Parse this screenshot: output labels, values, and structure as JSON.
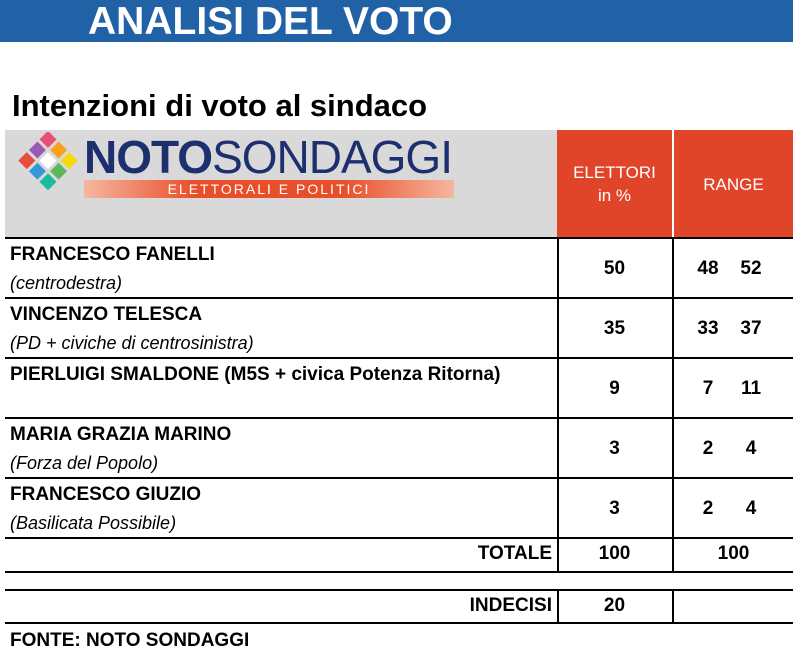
{
  "header": {
    "title": "ANALISI DEL VOTO"
  },
  "subtitle": "Intenzioni di voto al sindaco",
  "logo": {
    "brand_bold": "NOTO",
    "brand_light": "SONDAGGI",
    "tagline": "ELETTORALI E POLITICI"
  },
  "table": {
    "columns": {
      "voters": [
        "ELETTORI",
        "in %"
      ],
      "range": "RANGE"
    },
    "rows": [
      {
        "name": "FRANCESCO FANELLI",
        "party": "(centrodestra)",
        "value": 50,
        "range": [
          48,
          52
        ]
      },
      {
        "name": "VINCENZO TELESCA",
        "party": "(PD + civiche di centrosinistra)",
        "value": 35,
        "range": [
          33,
          37
        ]
      },
      {
        "name": "PIERLUIGI SMALDONE (M5S + civica Potenza Ritorna)",
        "value": 9,
        "range": [
          7,
          11
        ]
      },
      {
        "name": "MARIA GRAZIA MARINO",
        "party": "(Forza del Popolo)",
        "value": 3,
        "range": [
          2,
          4
        ]
      },
      {
        "name": "FRANCESCO GIUZIO",
        "party": "(Basilicata Possibile)",
        "value": 3,
        "range": [
          2,
          4
        ]
      }
    ],
    "total": {
      "label": "TOTALE",
      "value": 100,
      "range": 100
    },
    "undecided": {
      "label": "INDECISI",
      "value": 20
    }
  },
  "source": "FONTE: NOTO SONDAGGI"
}
